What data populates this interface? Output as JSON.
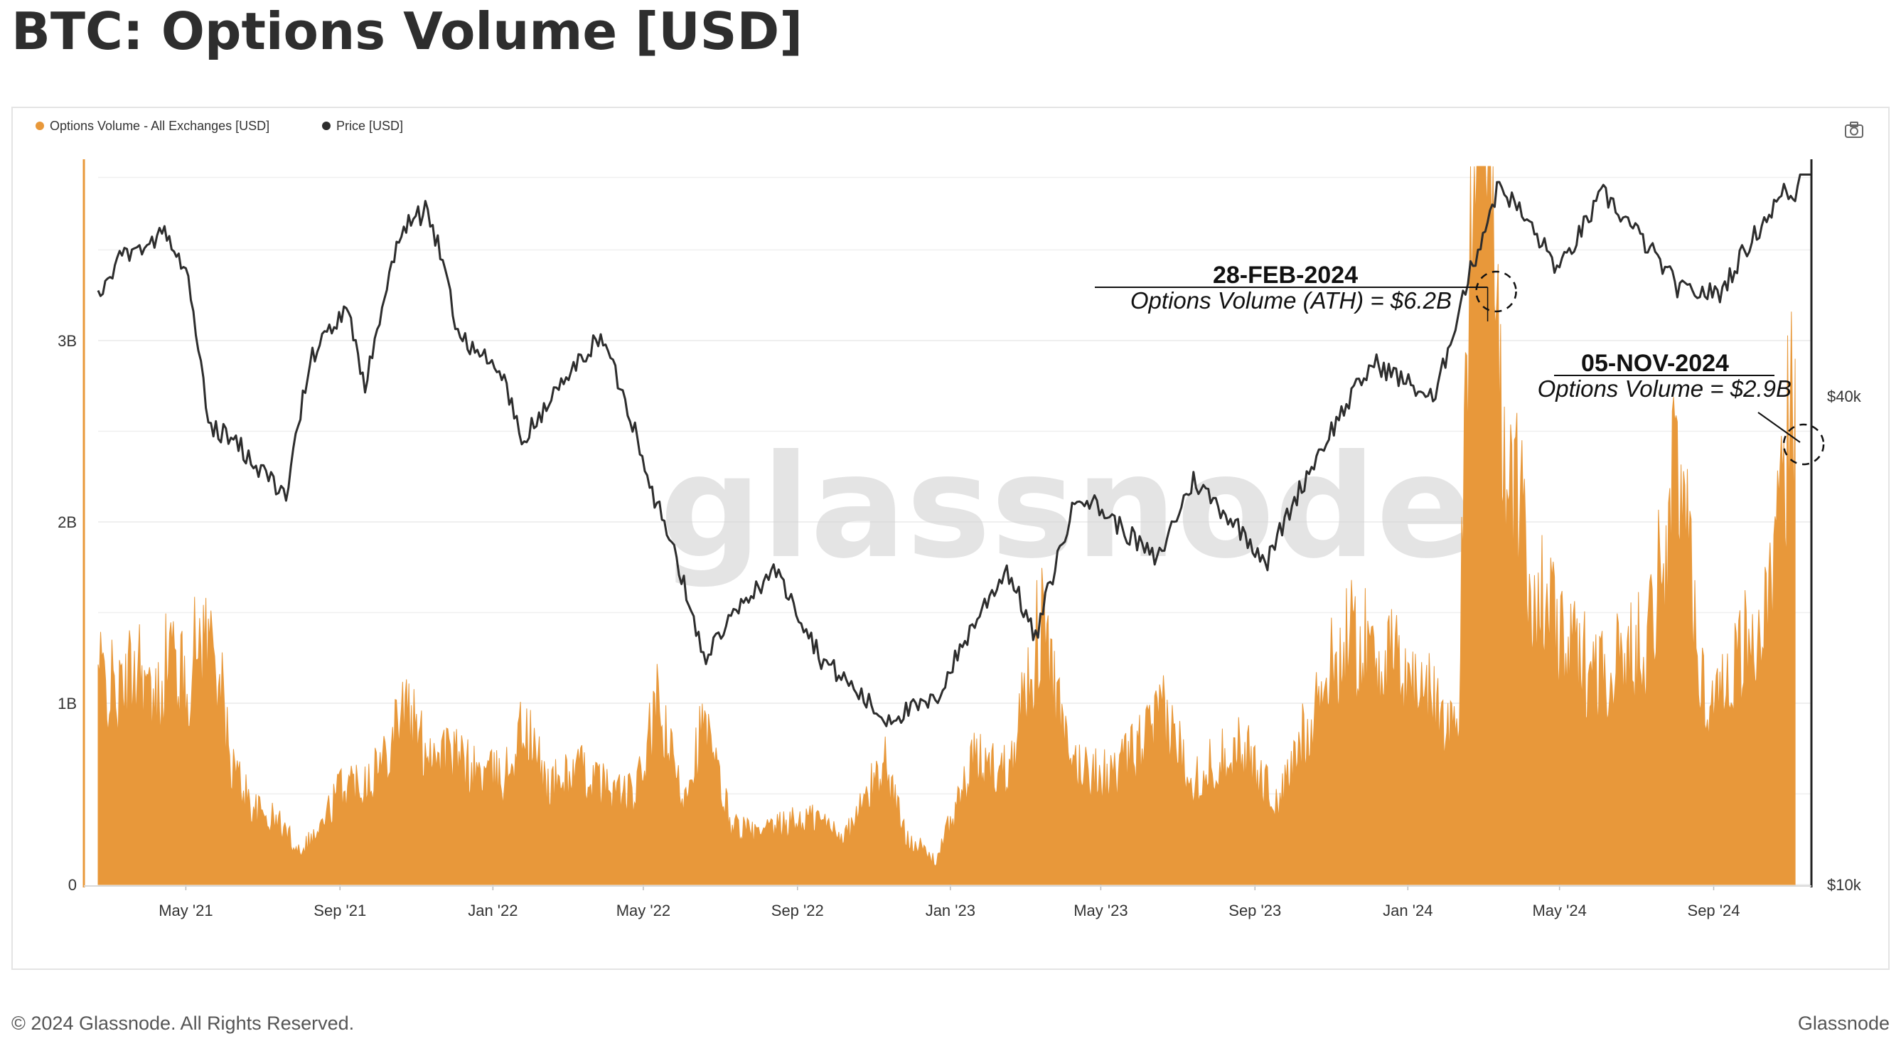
{
  "title": "BTC: Options Volume [USD]",
  "footer": {
    "copyright": "© 2024 Glassnode. All Rights Reserved.",
    "brand": "Glassnode"
  },
  "watermark": "glassnode",
  "toolbar": {
    "screenshot_icon": "camera-icon"
  },
  "colors": {
    "volume": "#E8983A",
    "price": "#2D2D2D",
    "grid": "#EFEFEF",
    "axis_accent_left": "#E8983A",
    "axis_accent_right": "#222222"
  },
  "chart_data": {
    "type": "area",
    "legend": {
      "placement": "top-left",
      "items": [
        {
          "name": "Options Volume - All Exchanges [USD]",
          "color": "#E8983A"
        },
        {
          "name": "Price [USD]",
          "color": "#2D2D2D"
        }
      ]
    },
    "x_axis": {
      "range": [
        "2021-02-20",
        "2024-11-18"
      ],
      "ticks": [
        "May '21",
        "Sep '21",
        "Jan '22",
        "May '22",
        "Sep '22",
        "Jan '23",
        "May '23",
        "Sep '23",
        "Jan '24",
        "May '24",
        "Sep '24"
      ]
    },
    "y_axis_left": {
      "range": [
        0,
        4000000000
      ],
      "ticks": [
        {
          "value": 0,
          "label": "0"
        },
        {
          "value": 1000000000,
          "label": "1B"
        },
        {
          "value": 2000000000,
          "label": "2B"
        },
        {
          "value": 3000000000,
          "label": "3B"
        }
      ]
    },
    "y_axis_right": {
      "scale": "log",
      "range": [
        10000,
        120000
      ],
      "ticks": [
        {
          "value": 10000,
          "label": "$10k"
        },
        {
          "value": 40000,
          "label": "$40k"
        }
      ]
    },
    "grid": true,
    "series": [
      {
        "name": "Options Volume - All Exchanges [USD]",
        "axis": "left",
        "type": "area",
        "points": [
          [
            "2021-02-20",
            1200000000
          ],
          [
            "2021-03-10",
            1050000000
          ],
          [
            "2021-03-25",
            1300000000
          ],
          [
            "2021-04-05",
            950000000
          ],
          [
            "2021-04-18",
            1350000000
          ],
          [
            "2021-05-01",
            1100000000
          ],
          [
            "2021-05-12",
            1420000000
          ],
          [
            "2021-05-25",
            1350000000
          ],
          [
            "2021-06-05",
            700000000
          ],
          [
            "2021-06-25",
            420000000
          ],
          [
            "2021-07-15",
            350000000
          ],
          [
            "2021-07-30",
            200000000
          ],
          [
            "2021-08-15",
            300000000
          ],
          [
            "2021-09-01",
            550000000
          ],
          [
            "2021-09-20",
            600000000
          ],
          [
            "2021-10-05",
            700000000
          ],
          [
            "2021-10-20",
            1050000000
          ],
          [
            "2021-11-05",
            800000000
          ],
          [
            "2021-11-25",
            750000000
          ],
          [
            "2021-12-15",
            650000000
          ],
          [
            "2022-01-10",
            600000000
          ],
          [
            "2022-01-25",
            900000000
          ],
          [
            "2022-02-15",
            550000000
          ],
          [
            "2022-03-10",
            650000000
          ],
          [
            "2022-04-01",
            550000000
          ],
          [
            "2022-04-25",
            500000000
          ],
          [
            "2022-05-12",
            1000000000
          ],
          [
            "2022-06-01",
            500000000
          ],
          [
            "2022-06-18",
            900000000
          ],
          [
            "2022-07-10",
            350000000
          ],
          [
            "2022-08-01",
            280000000
          ],
          [
            "2022-08-25",
            350000000
          ],
          [
            "2022-09-15",
            380000000
          ],
          [
            "2022-10-10",
            280000000
          ],
          [
            "2022-11-10",
            700000000
          ],
          [
            "2022-11-25",
            300000000
          ],
          [
            "2022-12-20",
            130000000
          ],
          [
            "2023-01-20",
            700000000
          ],
          [
            "2023-02-15",
            650000000
          ],
          [
            "2023-03-15",
            1500000000
          ],
          [
            "2023-04-05",
            700000000
          ],
          [
            "2023-05-10",
            600000000
          ],
          [
            "2023-06-20",
            950000000
          ],
          [
            "2023-07-15",
            600000000
          ],
          [
            "2023-08-20",
            800000000
          ],
          [
            "2023-09-20",
            450000000
          ],
          [
            "2023-10-20",
            1050000000
          ],
          [
            "2023-11-15",
            1400000000
          ],
          [
            "2023-12-10",
            1300000000
          ],
          [
            "2024-01-15",
            1100000000
          ],
          [
            "2024-02-10",
            850000000
          ],
          [
            "2024-02-28",
            6200000000
          ],
          [
            "2024-03-15",
            2600000000
          ],
          [
            "2024-04-10",
            1700000000
          ],
          [
            "2024-05-10",
            1300000000
          ],
          [
            "2024-06-10",
            1200000000
          ],
          [
            "2024-07-10",
            1400000000
          ],
          [
            "2024-08-05",
            2400000000
          ],
          [
            "2024-08-25",
            1000000000
          ],
          [
            "2024-09-20",
            1300000000
          ],
          [
            "2024-10-15",
            1500000000
          ],
          [
            "2024-11-05",
            2900000000
          ]
        ]
      },
      {
        "name": "Price [USD]",
        "axis": "right",
        "type": "line",
        "points": [
          [
            "2021-02-20",
            54000
          ],
          [
            "2021-03-13",
            60000
          ],
          [
            "2021-04-14",
            63500
          ],
          [
            "2021-05-01",
            57000
          ],
          [
            "2021-05-19",
            37000
          ],
          [
            "2021-06-10",
            35000
          ],
          [
            "2021-07-20",
            30000
          ],
          [
            "2021-08-10",
            45000
          ],
          [
            "2021-09-06",
            51000
          ],
          [
            "2021-09-21",
            41000
          ],
          [
            "2021-10-20",
            64000
          ],
          [
            "2021-11-10",
            68000
          ],
          [
            "2021-12-04",
            48000
          ],
          [
            "2022-01-10",
            42000
          ],
          [
            "2022-01-24",
            35000
          ],
          [
            "2022-03-28",
            47500
          ],
          [
            "2022-05-10",
            30000
          ],
          [
            "2022-06-18",
            19000
          ],
          [
            "2022-08-13",
            24500
          ],
          [
            "2022-09-20",
            19000
          ],
          [
            "2022-11-09",
            16000
          ],
          [
            "2022-12-20",
            16800
          ],
          [
            "2023-02-15",
            24500
          ],
          [
            "2023-03-10",
            20000
          ],
          [
            "2023-04-14",
            30500
          ],
          [
            "2023-06-15",
            25000
          ],
          [
            "2023-07-14",
            31500
          ],
          [
            "2023-09-11",
            25000
          ],
          [
            "2023-10-24",
            34500
          ],
          [
            "2023-12-05",
            44000
          ],
          [
            "2024-01-23",
            39500
          ],
          [
            "2024-02-28",
            62000
          ],
          [
            "2024-03-14",
            73000
          ],
          [
            "2024-05-01",
            57000
          ],
          [
            "2024-06-05",
            71000
          ],
          [
            "2024-08-05",
            54000
          ],
          [
            "2024-09-06",
            53500
          ],
          [
            "2024-10-29",
            72000
          ],
          [
            "2024-11-05",
            69000
          ],
          [
            "2024-11-13",
            90000
          ],
          [
            "2024-11-18",
            90500
          ]
        ]
      }
    ],
    "annotations": [
      {
        "date": "28-FEB-2024",
        "text": "Options Volume (ATH) = $6.2B",
        "x": "2024-02-28",
        "value": 6200000000
      },
      {
        "date": "05-NOV-2024",
        "text": "Options Volume = $2.9B",
        "x": "2024-11-05",
        "value": 2900000000
      }
    ]
  }
}
